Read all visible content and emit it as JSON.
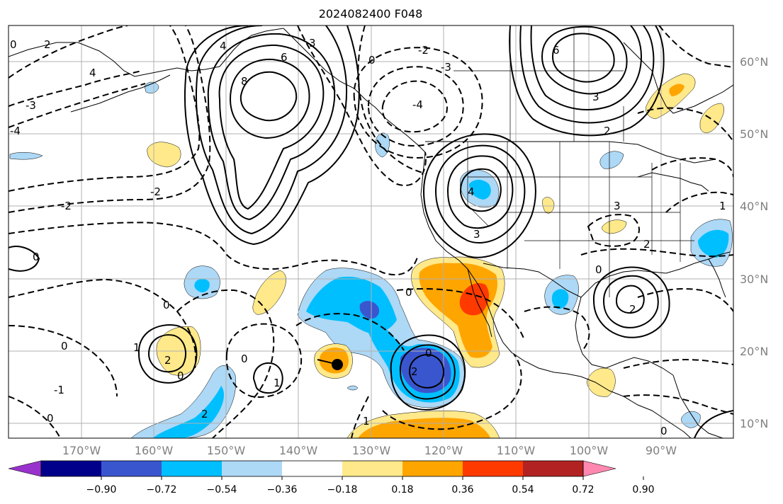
{
  "title": "2024082400 F048",
  "latitude_labels": [
    "60°N",
    "50°N",
    "40°N",
    "30°N",
    "20°N",
    "10°N"
  ],
  "longitude_labels": [
    "170°W",
    "160°W",
    "150°W",
    "140°W",
    "130°W",
    "120°W",
    "110°W",
    "100°W",
    "90°W"
  ],
  "colorbar": {
    "colors": [
      "#9932cc",
      "#00008b",
      "#3a56cf",
      "#00bfff",
      "#add8f6",
      "#ffffff",
      "#ffe98a",
      "#ffa500",
      "#ff3a00",
      "#b22222",
      "#ff88b0"
    ],
    "tick_labels": [
      "−0.90",
      "−0.72",
      "−0.54",
      "−0.36",
      "−0.18",
      "0.18",
      "0.36",
      "0.54",
      "0.72",
      "0.90"
    ]
  },
  "contour_labels": [
    {
      "text": "0"
    },
    {
      "text": "2"
    },
    {
      "text": "4"
    },
    {
      "text": "-3"
    },
    {
      "text": "-4"
    },
    {
      "text": "8"
    },
    {
      "text": "6"
    },
    {
      "text": "3"
    },
    {
      "text": "-2"
    },
    {
      "text": "0"
    },
    {
      "text": "-3"
    },
    {
      "text": "-4"
    },
    {
      "text": "6"
    },
    {
      "text": "3"
    },
    {
      "text": "2"
    },
    {
      "text": "4"
    },
    {
      "text": "-2"
    },
    {
      "text": "-2"
    },
    {
      "text": "0"
    },
    {
      "text": "4"
    },
    {
      "text": "3"
    },
    {
      "text": "3"
    },
    {
      "text": "2"
    },
    {
      "text": "1"
    },
    {
      "text": "0"
    },
    {
      "text": "0"
    },
    {
      "text": "0"
    },
    {
      "text": "2"
    },
    {
      "text": "-1"
    },
    {
      "text": "0"
    },
    {
      "text": "0"
    },
    {
      "text": "1"
    },
    {
      "text": "2"
    },
    {
      "text": "0"
    },
    {
      "text": "1"
    },
    {
      "text": "0"
    },
    {
      "text": "2"
    },
    {
      "text": "2"
    },
    {
      "text": "0"
    },
    {
      "text": "0"
    },
    {
      "text": "1"
    }
  ]
}
